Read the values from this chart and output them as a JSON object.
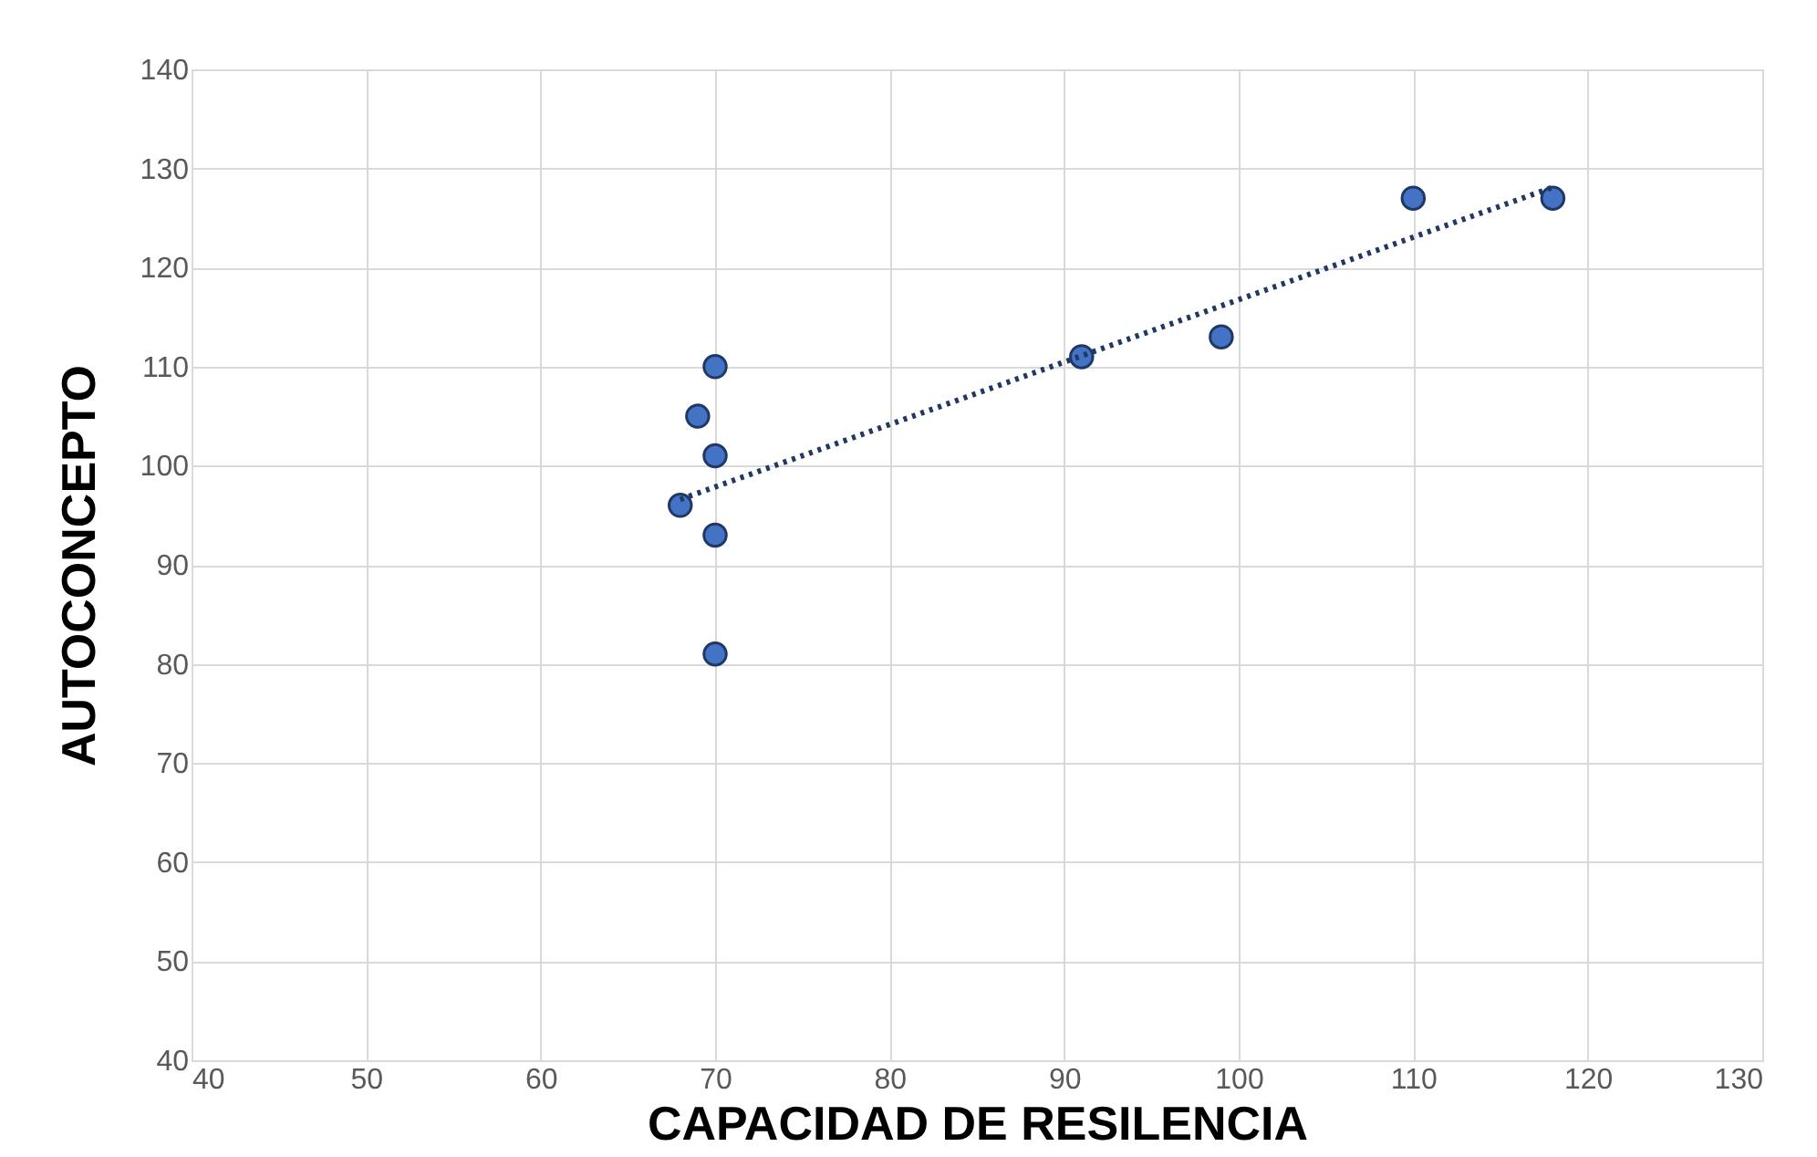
{
  "chart_data": {
    "type": "scatter",
    "xlabel": "CAPACIDAD DE RESILENCIA",
    "ylabel": "AUTOCONCEPTO",
    "xlim": [
      40,
      130
    ],
    "xticks": [
      40,
      50,
      60,
      70,
      80,
      90,
      100,
      110,
      120,
      130
    ],
    "ylim": [
      40,
      140
    ],
    "yticks": [
      40,
      50,
      60,
      70,
      80,
      90,
      100,
      110,
      120,
      130,
      140
    ],
    "grid": true,
    "series": [
      {
        "type": "scatter",
        "color": "#4472c4",
        "marker": "circle",
        "x": [
          68,
          69,
          70,
          70,
          70,
          70,
          91,
          99,
          110,
          118
        ],
        "values": [
          96,
          105,
          110,
          101,
          93,
          81,
          111,
          113,
          127,
          127
        ]
      },
      {
        "type": "line",
        "color": "#1f3864",
        "line_style": "dotted",
        "x": [
          68,
          118
        ],
        "values": [
          96.6,
          128.1
        ]
      }
    ]
  }
}
